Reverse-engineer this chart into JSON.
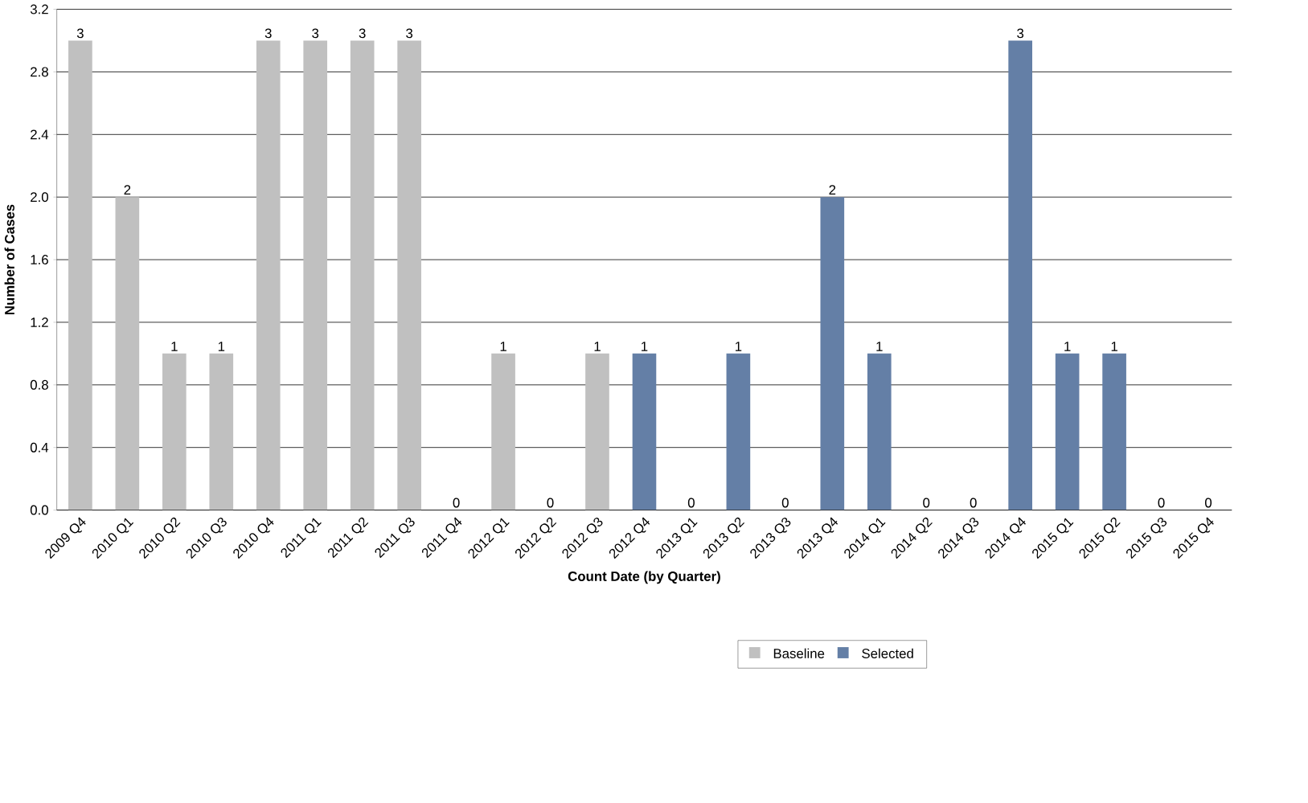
{
  "chart_data": {
    "type": "bar",
    "xlabel": "Count Date (by Quarter)",
    "ylabel": "Number of Cases",
    "categories": [
      "2009 Q4",
      "2010 Q1",
      "2010 Q2",
      "2010 Q3",
      "2010 Q4",
      "2011 Q1",
      "2011 Q2",
      "2011 Q3",
      "2011 Q4",
      "2012 Q1",
      "2012 Q2",
      "2012 Q3",
      "2012 Q4",
      "2013 Q1",
      "2013 Q2",
      "2013 Q3",
      "2013 Q4",
      "2014 Q1",
      "2014 Q2",
      "2014 Q3",
      "2014 Q4",
      "2015 Q1",
      "2015 Q2",
      "2015 Q3",
      "2015 Q4"
    ],
    "series": [
      {
        "name": "Baseline",
        "color": "#c0c0c0",
        "values": [
          3,
          2,
          1,
          1,
          3,
          3,
          3,
          3,
          0,
          1,
          0,
          1,
          null,
          null,
          null,
          null,
          null,
          null,
          null,
          null,
          null,
          null,
          null,
          null,
          null
        ]
      },
      {
        "name": "Selected",
        "color": "#647fa6",
        "values": [
          null,
          null,
          null,
          null,
          null,
          null,
          null,
          null,
          null,
          null,
          null,
          null,
          1,
          0,
          1,
          0,
          2,
          1,
          0,
          0,
          3,
          1,
          1,
          0,
          0
        ]
      }
    ],
    "ylim": [
      0,
      3.2
    ],
    "yticks": [
      {
        "value": 0,
        "label": "0.0"
      },
      0.4,
      0.8,
      1.2,
      1.6,
      {
        "value": 2,
        "label": "2.0"
      },
      2.4,
      2.8,
      3.2
    ],
    "grid": "y",
    "legend": "bottom",
    "data_labels": true
  }
}
